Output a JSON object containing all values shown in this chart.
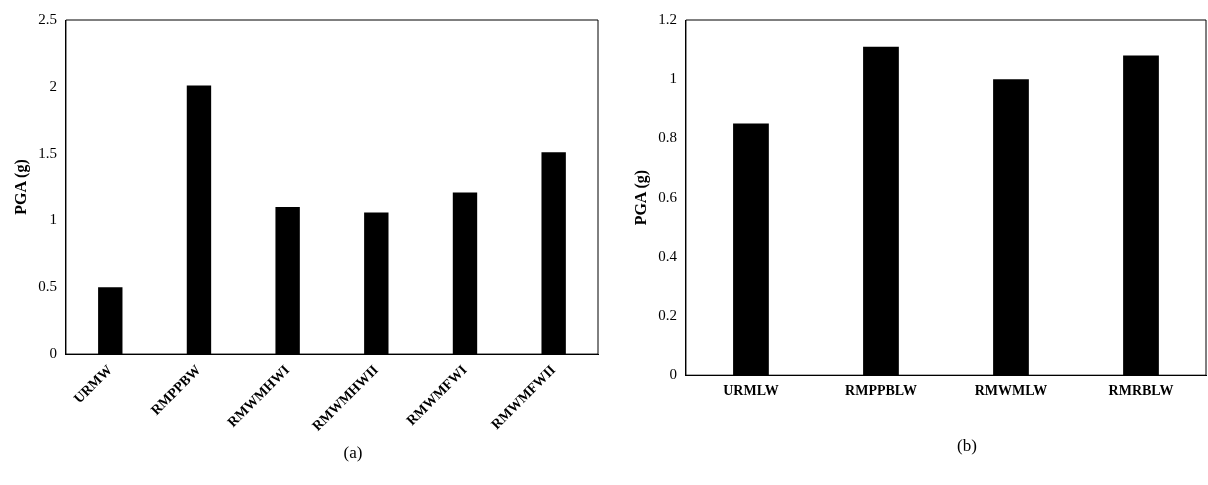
{
  "chart_data": [
    {
      "type": "bar",
      "ylabel": "PGA (g)",
      "categories": [
        "URMW",
        "RMPPBW",
        "RMWMHWI",
        "RMWMHWII",
        "RMWMFWI",
        "RMWMFWII"
      ],
      "values": [
        0.5,
        2.01,
        1.1,
        1.06,
        1.21,
        1.51
      ],
      "color": "#000000",
      "ylim": [
        0,
        2.5
      ],
      "yticks": [
        0,
        0.5,
        1,
        1.5,
        2,
        2.5
      ],
      "grid": false,
      "legend": false,
      "annotations": [
        "(a)"
      ]
    },
    {
      "type": "bar",
      "ylabel": "PGA (g)",
      "categories": [
        "URMLW",
        "RMPPBLW",
        "RMWMLW",
        "RMRBLW"
      ],
      "values": [
        0.85,
        1.11,
        1.0,
        1.08
      ],
      "color": "#000000",
      "ylim": [
        0,
        1.2
      ],
      "yticks": [
        0,
        0.2,
        0.4,
        0.6,
        0.8,
        1,
        1.2
      ],
      "grid": false,
      "legend": false,
      "annotations": [
        "(b)"
      ]
    }
  ]
}
